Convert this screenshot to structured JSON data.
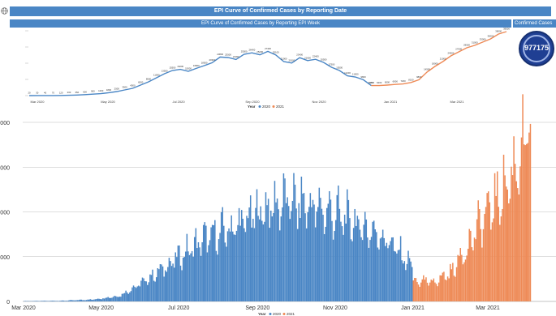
{
  "header": {
    "title": "EPI Curve of Confirmed Cases by Reporting Date",
    "subtitle": "EPI Curve of Confirmed Cases by Reporting EPI Week",
    "card_title": "Confirmed Cases",
    "card_value": "977175"
  },
  "colors": {
    "y2020": "#4a86c5",
    "y2021": "#ee8a56",
    "band": "#4a86c5"
  },
  "chart_data": [
    {
      "type": "line",
      "title": "EPI Curve of Confirmed Cases by Reporting EPI Week",
      "xlabel": "",
      "ylabel": "",
      "x_ticks": [
        "Mar 2020",
        "May 2020",
        "Jul 2020",
        "Sep 2020",
        "Nov 2020",
        "Jan 2021",
        "Mar 2021"
      ],
      "legend": {
        "title": "Year",
        "entries": [
          "2020",
          "2021"
        ],
        "placement": "bottom-center"
      },
      "ylim": [
        0,
        40000
      ],
      "series": [
        {
          "name": "2020",
          "values": [
            20,
            30,
            40,
            70,
            120,
            200,
            350,
            600,
            900,
            1200,
            1800,
            2500,
            3500,
            4500,
            6500,
            8500,
            11000,
            13500,
            15500,
            16200,
            15000,
            16800,
            18500,
            20300,
            23800,
            23500,
            22300,
            25500,
            26400,
            25200,
            27300,
            25100,
            21000,
            20100,
            23400,
            21600,
            22400,
            20500,
            17500,
            15500,
            12200,
            11500,
            9800,
            6200
          ]
        },
        {
          "name": "2021",
          "values": [
            6200,
            6500,
            6900,
            7200,
            8100,
            9800,
            14500,
            18000,
            21000,
            24500,
            27000,
            29500,
            31000,
            33000,
            35000,
            38000,
            39500
          ]
        }
      ]
    },
    {
      "type": "bar",
      "title": "",
      "xlabel": "",
      "ylabel": "",
      "x_ticks": [
        "Mar 2020",
        "May 2020",
        "Jul 2020",
        "Sep 2020",
        "Nov 2020",
        "Jan 2021",
        "Mar 2021"
      ],
      "y_ticks": [
        "0",
        "2,000",
        "4,000",
        "6,000",
        "8,000"
      ],
      "ylim": [
        0,
        8200
      ],
      "legend": {
        "title": "Year",
        "entries": [
          "2020",
          "2021"
        ],
        "placement": "bottom-center"
      },
      "grid": true,
      "series": [
        {
          "name": "2020",
          "start": "2020-03-01",
          "end": "2020-12-31",
          "profile": [
            [
              0,
              15
            ],
            [
              30,
              30
            ],
            [
              55,
              90
            ],
            [
              75,
              250
            ],
            [
              95,
              900
            ],
            [
              115,
              1700
            ],
            [
              140,
              2700
            ],
            [
              165,
              3300
            ],
            [
              185,
              4000
            ],
            [
              205,
              4450
            ],
            [
              225,
              4250
            ],
            [
              245,
              3850
            ],
            [
              265,
              3350
            ],
            [
              285,
              2800
            ],
            [
              305,
              1550
            ],
            [
              305,
              1100
            ]
          ]
        },
        {
          "name": "2021",
          "start": "2021-01-01",
          "end": "2021-04-03",
          "profile": [
            [
              0,
              900
            ],
            [
              15,
              850
            ],
            [
              30,
              1300
            ],
            [
              45,
              2700
            ],
            [
              60,
              4100
            ],
            [
              75,
              5300
            ],
            [
              85,
              6700
            ],
            [
              93,
              7800
            ]
          ]
        }
      ]
    }
  ]
}
